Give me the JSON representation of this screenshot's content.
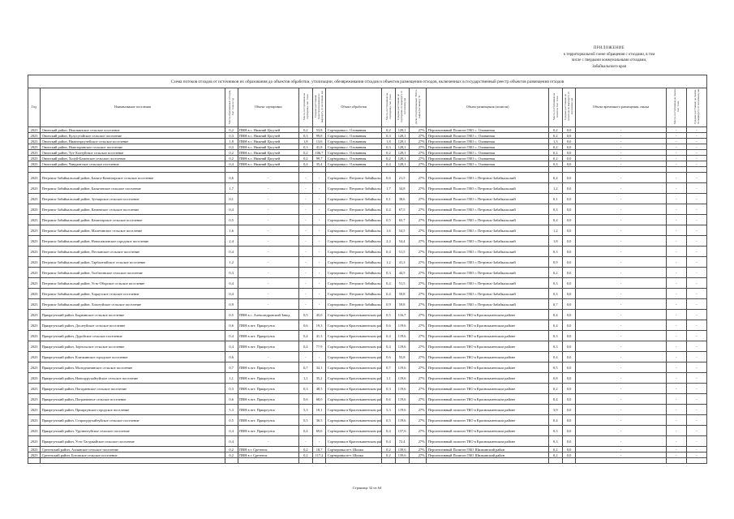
{
  "page": {
    "appendix": {
      "line1": "ПРИЛОЖЕНИЕ",
      "line2": "к территориальной схеме обращения с отходами, в том",
      "line3": "числе с твердыми коммунальными отходами,",
      "line4": "Забайкальского края"
    },
    "footer": "Страница 32 из 64"
  },
  "table": {
    "title": "Схема потоков отходов от источников их образования до объектов обработки, утилизации, обезвреживания отходов и объектов размещения отходов, включенных в государственный реестр объектов размещения отходов",
    "columns": [
      {
        "label": "Год",
        "rot": false
      },
      {
        "label": "Наименование поселения",
        "rot": false
      },
      {
        "label": "Масса образованных отходов, тыс. тонн в год",
        "rot": true
      },
      {
        "label": "Объект сортировки",
        "rot": false
      },
      {
        "label": "Масса, поступившая на сортировку, тыс. тонн",
        "rot": true
      },
      {
        "label": "Среднее расстояние транспортирования по маршруту от поселения, км",
        "rot": true
      },
      {
        "label": "Объект обработки",
        "rot": false
      },
      {
        "label": "Масса, поступившая на сортировку, тыс. тонн",
        "rot": true
      },
      {
        "label": "Среднее расстояние до сортировки по маршруту от поселения, км",
        "rot": true
      },
      {
        "label": "Доля отсортированных ТКО и сырья (не менее), %",
        "rot": true
      },
      {
        "label": "Объект размещения (полигон)",
        "rot": false
      },
      {
        "label": "Масса, поступившая на полигон, тыс. тонн",
        "rot": true
      },
      {
        "label": "Среднее расстояние до полигона по маршруту от поселения, км",
        "rot": true
      },
      {
        "label": "Объект временного размещения, свалка",
        "rot": false
      },
      {
        "label": "Масса, поступившая на свалку, тыс. тонн",
        "rot": true
      },
      {
        "label": "Среднее расстояние до свалки по маршруту от поселения, км",
        "rot": true
      }
    ],
    "rows": [
      [
        "2023",
        "Ононский район, Ималкинское сельское поселение",
        "0,2",
        "ПВН в с. Нижний Цасучей",
        "0,2",
        "53,8",
        "Сортировка с. Оловянная",
        "0,2",
        "128,1",
        "27%",
        "Перспективный Полигон ТКО с. Оловянная",
        "0,2",
        "0,0",
        "-",
        "-",
        "-"
      ],
      [
        "2023",
        "Ононский район, Кулусутайское сельское поселение",
        "0,3",
        "ПВН в с. Нижний Цасучей",
        "0,3",
        "99,8",
        "Сортировка с. Оловянная",
        "0,3",
        "128,1",
        "27%",
        "Перспективный Полигон ТКО с. Оловянная",
        "0,2",
        "0,0",
        "-",
        "-",
        "-"
      ],
      [
        "2023",
        "Ононский район, Нижнецасучейское сельское поселение",
        "1,8",
        "ПВН в с. Нижний Цасучей",
        "1,8",
        "13,6",
        "Сортировка с. Оловянная",
        "1,8",
        "128,1",
        "27%",
        "Перспективный Полигон ТКО с. Оловянная",
        "1,3",
        "0,0",
        "-",
        "-",
        "-"
      ],
      [
        "2023",
        "Ононский район, Новозоринское сельское поселение",
        "0,3",
        "ПВН в с. Нижний Цасучей",
        "0,3",
        "41,8",
        "Сортировка с. Оловянная",
        "0,3",
        "128,1",
        "27%",
        "Перспективный Полигон ТКО с. Оловянная",
        "0,2",
        "0,0",
        "-",
        "-",
        "-"
      ],
      [
        "2023",
        "Ононский район, Тут-Халтуйское сельское поселение",
        "0,2",
        "ПВН в с. Нижний Цасучей",
        "0,2",
        "106,7",
        "Сортировка с. Оловянная",
        "0,2",
        "128,1",
        "27%",
        "Перспективный Полигон ТКО с. Оловянная",
        "0,2",
        "0,0",
        "-",
        "-",
        "-"
      ],
      [
        "2023",
        "Ононский район, Холуй-Базинское сельское поселение",
        "0,2",
        "ПВН в с. Нижний Цасучей",
        "0,2",
        "99,7",
        "Сортировка с. Оловянная",
        "0,2",
        "128,1",
        "27%",
        "Перспективный Полигон ТКО с. Оловянная",
        "0,2",
        "0,0",
        "-",
        "-",
        "-"
      ],
      [
        "2023",
        "Ононский район, Чиндантское сельское поселение",
        "0,4",
        "ПВН в с. Нижний Цасучей",
        "0,4",
        "35,4",
        "Сортировка с. Оловянная",
        "0,4",
        "128,1",
        "27%",
        "Перспективный Полигон ТКО с. Оловянная",
        "0,3",
        "0,0",
        "-",
        "-",
        "-"
      ],
      [
        "",
        "",
        "",
        "",
        "",
        "",
        "",
        "",
        "",
        "",
        "",
        "",
        "",
        "",
        "",
        ""
      ],
      [
        "2023",
        "Петровск-Забайкальский район, Баляга-Катангарское сельское поселение",
        "0,6",
        "-",
        "-",
        "-",
        "Сортировка г. Петровск-Забайкальский",
        "0,6",
        "21,5",
        "27%",
        "Перспективный Полигон ТКО г. Петровск-Забайкальский",
        "0,4",
        "0,0",
        "-",
        "-",
        "-"
      ],
      [
        "2023",
        "Петровск-Забайкальский район, Балягинское сельское поселение",
        "1,7",
        "-",
        "-",
        "-",
        "Сортировка г. Петровск-Забайкальский",
        "1,7",
        "34,8",
        "27%",
        "Перспективный Полигон ТКО г. Петровск-Забайкальский",
        "1,2",
        "0,0",
        "-",
        "-",
        "-"
      ],
      [
        "2023",
        "Петровск-Забайкальский район, Зугмарское сельское поселение",
        "0,1",
        "-",
        "-",
        "-",
        "Сортировка г. Петровск-Забайкальский",
        "0,1",
        "38,6",
        "27%",
        "Перспективный Полигон ТКО г. Петровск-Забайкальский",
        "0,1",
        "0,0",
        "-",
        "-",
        "-"
      ],
      [
        "2023",
        "Петровск-Забайкальский район, Катаевское сельское поселение",
        "0,4",
        "-",
        "-",
        "-",
        "Сортировка г. Петровск-Забайкальский",
        "0,4",
        "67,5",
        "27%",
        "Перспективный Полигон ТКО г. Петровск-Забайкальский",
        "0,3",
        "0,0",
        "-",
        "-",
        "-"
      ],
      [
        "2023",
        "Петровск-Забайкальский район, Катангарское сельское поселение",
        "0,5",
        "-",
        "-",
        "-",
        "Сортировка г. Петровск-Забайкальский",
        "0,5",
        "65,7",
        "27%",
        "Перспективный Полигон ТКО г. Петровск-Забайкальский",
        "0,4",
        "0,0",
        "-",
        "-",
        "-"
      ],
      [
        "2023",
        "Петровск-Забайкальский район, Малетинское сельское поселение",
        "1,6",
        "-",
        "-",
        "-",
        "Сортировка г. Петровск-Забайкальский",
        "1,6",
        "54,5",
        "27%",
        "Перспективный Полигон ТКО г. Петровск-Забайкальский",
        "1,2",
        "0,0",
        "-",
        "-",
        "-"
      ],
      [
        "2023",
        "Петровск-Забайкальский район, Новопавловское городское поселение",
        "2,4",
        "-",
        "-",
        "-",
        "Сортировка г. Петровск-Забайкальский",
        "2,4",
        "54,4",
        "27%",
        "Перспективный Полигон ТКО г. Петровск-Забайкальский",
        "1,8",
        "0,0",
        "-",
        "-",
        "-"
      ],
      [
        "2023",
        "Петровск-Забайкальский район, Песчанское сельское поселение",
        "0,4",
        "-",
        "-",
        "-",
        "Сортировка г. Петровск-Забайкальский",
        "0,4",
        "51,5",
        "27%",
        "Перспективный Полигон ТКО г. Петровск-Забайкальский",
        "0,3",
        "0,0",
        "-",
        "-",
        "-"
      ],
      [
        "2023",
        "Петровск-Забайкальский район, Тарбагатайское сельское поселение",
        "1,2",
        "-",
        "-",
        "-",
        "Сортировка г. Петровск-Забайкальский",
        "1,2",
        "41,3",
        "27%",
        "Перспективный Полигон ТКО г. Петровск-Забайкальский",
        "0,9",
        "0,0",
        "-",
        "-",
        "-"
      ],
      [
        "2023",
        "Петровск-Забайкальский район, Толбагинское сельское поселение",
        "0,3",
        "-",
        "-",
        "-",
        "Сортировка г. Петровск-Забайкальский",
        "0,3",
        "44,5",
        "27%",
        "Перспективный Полигон ТКО г. Петровск-Забайкальский",
        "0,2",
        "0,0",
        "-",
        "-",
        "-"
      ],
      [
        "2023",
        "Петровск-Забайкальский район, Усть-Оборское сельское поселение",
        "0,4",
        "-",
        "-",
        "-",
        "Сортировка г. Петровск-Забайкальский",
        "0,4",
        "51,5",
        "27%",
        "Перспективный Полигон ТКО г. Петровск-Забайкальский",
        "0,3",
        "0,0",
        "-",
        "-",
        "-"
      ],
      [
        "2023",
        "Петровск-Забайкальский район, Хараузское сельское поселение",
        "0,4",
        "-",
        "-",
        "-",
        "Сортировка г. Петровск-Забайкальский",
        "0,4",
        "50,8",
        "27%",
        "Перспективный Полигон ТКО г. Петровск-Забайкальский",
        "0,3",
        "0,0",
        "-",
        "-",
        "-"
      ],
      [
        "2023",
        "Петровск-Забайкальский район, Хохотуйское сельское поселение",
        "0,9",
        "-",
        "-",
        "-",
        "Сортировка г. Петровск-Забайкальский",
        "0,9",
        "59,8",
        "27%",
        "Перспективный Полигон ТКО г. Петровск-Забайкальский",
        "0,7",
        "0,0",
        "-",
        "-",
        "-"
      ],
      [
        "2023",
        "Приаргунский район, Быркинское сельское поселение",
        "0,5",
        "ПВН в с. Александровский Завод",
        "0,5",
        "45,0",
        "Сортировка в Краснокаменском районе",
        "0,5",
        "116,7",
        "27%",
        "Перспективный полигон ТКО в Краснокаменском районе",
        "0,4",
        "0,0",
        "-",
        "-",
        "-"
      ],
      [
        "2023",
        "Приаргунский район, Досатуйское сельское поселение",
        "0,6",
        "ПВН в пгт. Приаргунск",
        "0,6",
        "19,3",
        "Сортировка в Краснокаменском районе",
        "0,6",
        "119,6",
        "27%",
        "Перспективный полигон ТКО в Краснокаменском районе",
        "0,4",
        "0,0",
        "-",
        "-",
        "-"
      ],
      [
        "2023",
        "Приаргунский район, Дуройское сельское поселение",
        "0,4",
        "ПВН в пгт. Приаргунск",
        "0,4",
        "41,3",
        "Сортировка в Краснокаменском районе",
        "0,4",
        "119,6",
        "27%",
        "Перспективный полигон ТКО в Краснокаменском районе",
        "0,3",
        "0,0",
        "-",
        "-",
        "-"
      ],
      [
        "2023",
        "Приаргунский район, Зоргольское сельское поселение",
        "0,4",
        "ПВН в пгт. Приаргунск",
        "0,4",
        "77,9",
        "Сортировка в Краснокаменском районе",
        "0,4",
        "119,6",
        "27%",
        "Перспективный полигон ТКО в Краснокаменском районе",
        "0,3",
        "0,0",
        "-",
        "-",
        "-"
      ],
      [
        "2023",
        "Приаргунский район, Кличкинское городское поселение",
        "0,6",
        "-",
        "-",
        "-",
        "Сортировка в Краснокаменском районе",
        "0,6",
        "55,8",
        "27%",
        "Перспективный полигон ТКО в Краснокаменском районе",
        "0,4",
        "0,0",
        "-",
        "-",
        "-"
      ],
      [
        "2023",
        "Приаргунский район, Молодежнинское сельское поселение",
        "0,7",
        "ПВН в пгт. Приаргунск",
        "0,7",
        "34,1",
        "Сортировка в Краснокаменском районе",
        "0,7",
        "119,6",
        "27%",
        "Перспективный полигон ТКО в Краснокаменском районе",
        "0,5",
        "0,0",
        "-",
        "-",
        "-"
      ],
      [
        "2023",
        "Приаргунский район, Новоцурухайтуйское сельское поселение",
        "1,1",
        "ПВН в пгт. Приаргунск",
        "1,1",
        "35,2",
        "Сортировка в Краснокаменском районе",
        "1,1",
        "119,6",
        "27%",
        "Перспективный полигон ТКО в Краснокаменском районе",
        "0,8",
        "0,0",
        "-",
        "-",
        "-"
      ],
      [
        "2023",
        "Приаргунский район, Погадаевское сельское поселение",
        "0,3",
        "ПВН в пгт. Приаргунск",
        "0,3",
        "48,5",
        "Сортировка в Краснокаменском районе",
        "0,3",
        "119,6",
        "27%",
        "Перспективный полигон ТКО в Краснокаменском районе",
        "0,2",
        "0,0",
        "-",
        "-",
        "-"
      ],
      [
        "2023",
        "Приаргунский район, Пограничное сельское поселение",
        "0,6",
        "ПВН в пгт. Приаргунск",
        "0,6",
        "68,0",
        "Сортировка в Краснокаменском районе",
        "0,6",
        "119,6",
        "27%",
        "Перспективный полигон ТКО в Краснокаменском районе",
        "0,4",
        "0,0",
        "-",
        "-",
        "-"
      ],
      [
        "2023",
        "Приаргунский район, Приаргунское городское поселение",
        "5,3",
        "ПВН в пгт. Приаргунск",
        "5,3",
        "18,1",
        "Сортировка в Краснокаменском районе",
        "5,3",
        "119,6",
        "27%",
        "Перспективный полигон ТКО в Краснокаменском районе",
        "3,9",
        "0,0",
        "-",
        "-",
        "-"
      ],
      [
        "2023",
        "Приаргунский район, Староцурухайтуйское сельское поселение",
        "0,5",
        "ПВН в пгт. Приаргунск",
        "0,5",
        "30,5",
        "Сортировка в Краснокаменском районе",
        "0,5",
        "119,6",
        "27%",
        "Перспективный полигон ТКО в Краснокаменском районе",
        "0,4",
        "0,0",
        "-",
        "-",
        "-"
      ],
      [
        "2023",
        "Приаргунский район, Урулюнгуйское сельское поселение",
        "0,4",
        "ПВН в пгт. Приаргунск",
        "0,4",
        "69,6",
        "Сортировка в Краснокаменском районе",
        "0,4",
        "137,6",
        "27%",
        "Перспективный полигон ТКО в Краснокаменском районе",
        "0,3",
        "0,0",
        "-",
        "-",
        "-"
      ],
      [
        "2023",
        "Приаргунский район, Усть-Тасуркайское сельское поселение",
        "0,4",
        "-",
        "-",
        "-",
        "Сортировка в Краснокаменском районе",
        "0,4",
        "72,4",
        "27%",
        "Перспективный полигон ТКО в Краснокаменском районе",
        "0,3",
        "0,0",
        "-",
        "-",
        "-"
      ],
      [
        "2023",
        "Сретенский район, Алиянское сельское поселение",
        "0,2",
        "ПВН в г. Сретенск",
        "0,2",
        "18,7",
        "Сортировка пгт. Шилка",
        "0,2",
        "139,6",
        "27%",
        "Перспективный Полигон ТКО Шилкинский район",
        "0,2",
        "0,0",
        "-",
        "-",
        "-"
      ],
      [
        "2023",
        "Сретенский район, Ботовское сельское поселение",
        "0,2",
        "ПВН в г. Сретенск",
        "0,2",
        "117,2",
        "Сортировка пгт. Шилка",
        "0,2",
        "139,6",
        "27%",
        "Перспективный Полигон ТКО Шилкинский район",
        "0,2",
        "0,0",
        "-",
        "-",
        "-"
      ],
      [
        "",
        "",
        "",
        "",
        "",
        "",
        "",
        "",
        "",
        "",
        "",
        "",
        "",
        "",
        "",
        ""
      ]
    ]
  }
}
